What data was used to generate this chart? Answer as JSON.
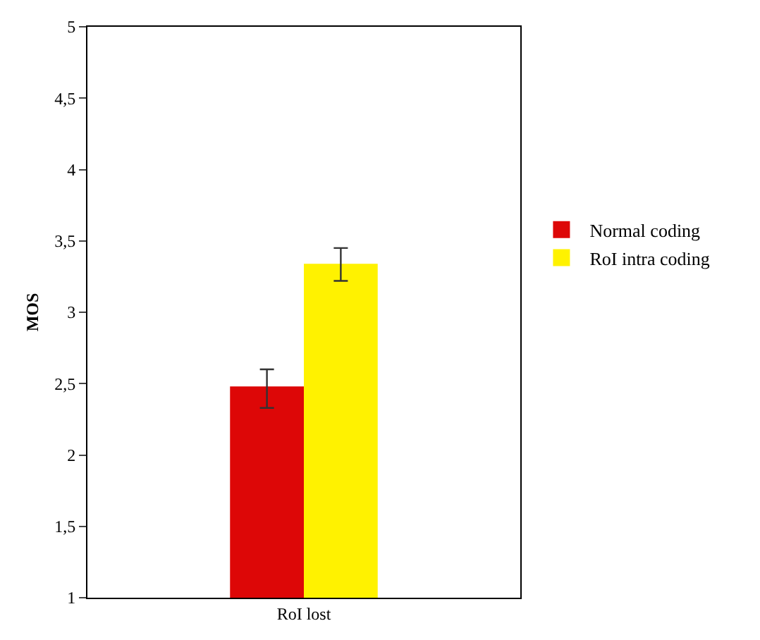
{
  "chart_data": {
    "type": "bar",
    "ylabel": "MOS",
    "categories": [
      "RoI lost"
    ],
    "series": [
      {
        "name": "Normal coding",
        "color": "#dd0707",
        "values": [
          2.48
        ],
        "errors": [
          [
            2.33,
            2.6
          ]
        ]
      },
      {
        "name": "RoI intra coding",
        "color": "#fff200",
        "values": [
          3.34
        ],
        "errors": [
          [
            3.22,
            3.45
          ]
        ]
      }
    ],
    "ylim": [
      1,
      5
    ],
    "yticks": [
      1,
      {
        "value": 1.5,
        "label": "1,5"
      },
      2,
      {
        "value": 2.5,
        "label": "2,5"
      },
      3,
      {
        "value": 3.5,
        "label": "3,5"
      },
      4,
      {
        "value": 4.5,
        "label": "4,5"
      },
      5
    ],
    "legend": "right"
  }
}
